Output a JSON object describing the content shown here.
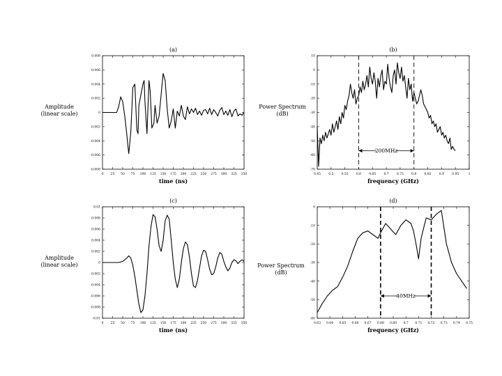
{
  "chart_data": [
    {
      "id": "a",
      "type": "line",
      "title": "(a)",
      "xlabel": "time (ns)",
      "ylabel": [
        "Amplitude",
        "(linear scale)"
      ],
      "xlim": [
        0,
        350
      ],
      "ylim": [
        -0.008,
        0.008
      ],
      "xticks": [
        0,
        25,
        50,
        75,
        100,
        125,
        150,
        175,
        200,
        225,
        250,
        275,
        300,
        325,
        350
      ],
      "xtick_labels": [
        "0",
        "25",
        "50",
        "75",
        "100",
        "125",
        "150",
        "175",
        "200",
        "225",
        "250",
        "275",
        "300",
        "325",
        "350"
      ],
      "yticks": [
        -0.008,
        -0.006,
        -0.004,
        -0.002,
        0,
        0.002,
        0.004,
        0.006,
        0.008
      ],
      "ytick_labels": [
        "-0.008",
        "-0.006",
        "-0.004",
        "-0.002",
        "0",
        "0.002",
        "0.004",
        "0.006",
        "0.008"
      ],
      "grid": false,
      "series": [
        {
          "x": [
            0,
            30,
            35,
            40,
            45,
            50,
            55,
            60,
            62,
            65,
            70,
            75,
            80,
            85,
            88,
            90,
            95,
            100,
            103,
            105,
            110,
            115,
            118,
            122,
            127,
            130,
            135,
            140,
            145,
            150,
            155,
            160,
            165,
            170,
            175,
            180,
            185,
            190,
            195,
            200,
            205,
            210,
            215,
            220,
            225,
            230,
            235,
            240,
            245,
            250,
            255,
            260,
            265,
            270,
            275,
            280,
            285,
            290,
            295,
            300,
            305,
            310,
            315,
            320,
            325,
            330,
            335,
            340,
            345,
            350
          ],
          "y": [
            0,
            0,
            0,
            0.0008,
            0.0022,
            0.0015,
            -0.0005,
            -0.003,
            -0.0043,
            -0.0058,
            -0.0028,
            0.0035,
            0.004,
            -0.0025,
            -0.003,
            0.001,
            0.0025,
            0.004,
            0.0045,
            0.0015,
            -0.003,
            0.0045,
            0.003,
            -0.0022,
            -0.0015,
            0.001,
            -0.0015,
            -0.0005,
            0.0025,
            0.0055,
            0.0045,
            0.0005,
            -0.0022,
            -0.0012,
            0.0005,
            -0.0022,
            0.0002,
            -0.0005,
            0.001,
            -0.0005,
            -0.001,
            0.0008,
            -0.0002,
            0.0005,
            0.0,
            0.0006,
            -0.0003,
            0.0002,
            -0.0004,
            0.0003,
            0.0004,
            -0.0002,
            0.0006,
            -0.0003,
            0.0004,
            0.0,
            -0.0005,
            0.0003,
            0.0007,
            -0.0003,
            0.0002,
            -0.0004,
            0.0004,
            -0.0006,
            0.0002,
            0.0005,
            -0.0005,
            -0.0002,
            -0.0004,
            0.0
          ]
        }
      ]
    },
    {
      "id": "b",
      "type": "line",
      "title": "(b)",
      "xlabel": "frequency (GHz)",
      "ylabel": [
        "Power Spectrum",
        "(dB)"
      ],
      "xlim": [
        0.45,
        1.0
      ],
      "ylim": [
        -70,
        10
      ],
      "xticks": [
        0.45,
        0.5,
        0.55,
        0.6,
        0.65,
        0.7,
        0.75,
        0.8,
        0.85,
        0.9,
        0.95,
        1.0
      ],
      "xtick_labels": [
        "0.45",
        "0.5",
        "0.55",
        "0.6",
        "0.65",
        "0.7",
        "0.75",
        "0.8",
        "0.85",
        "0.9",
        "0.95",
        "1"
      ],
      "yticks": [
        -70,
        -60,
        -50,
        -40,
        -30,
        -20,
        -10,
        0,
        10
      ],
      "ytick_labels": [
        "-70",
        "-60",
        "-50",
        "-40",
        "-30",
        "-20",
        "-10",
        "0",
        "10"
      ],
      "grid": false,
      "vlines": [
        0.6,
        0.8
      ],
      "annotation": {
        "text": "200MHz",
        "x1": 0.6,
        "x2": 0.8,
        "y": -57
      },
      "series": [
        {
          "x": [
            0.45,
            0.455,
            0.46,
            0.465,
            0.47,
            0.475,
            0.48,
            0.485,
            0.49,
            0.495,
            0.5,
            0.505,
            0.51,
            0.515,
            0.52,
            0.525,
            0.53,
            0.535,
            0.54,
            0.545,
            0.55,
            0.555,
            0.56,
            0.565,
            0.57,
            0.575,
            0.58,
            0.585,
            0.59,
            0.595,
            0.6,
            0.605,
            0.61,
            0.615,
            0.62,
            0.625,
            0.63,
            0.635,
            0.64,
            0.645,
            0.65,
            0.655,
            0.66,
            0.665,
            0.67,
            0.675,
            0.68,
            0.685,
            0.69,
            0.695,
            0.7,
            0.705,
            0.71,
            0.715,
            0.72,
            0.725,
            0.73,
            0.735,
            0.74,
            0.745,
            0.75,
            0.755,
            0.76,
            0.765,
            0.77,
            0.775,
            0.78,
            0.785,
            0.79,
            0.795,
            0.8,
            0.805,
            0.81,
            0.815,
            0.82,
            0.825,
            0.83,
            0.835,
            0.84,
            0.845,
            0.85,
            0.855,
            0.86,
            0.865,
            0.87,
            0.875,
            0.88,
            0.885,
            0.89,
            0.895,
            0.9,
            0.905,
            0.91,
            0.915,
            0.92,
            0.925,
            0.93,
            0.935,
            0.94,
            0.945,
            0.95
          ],
          "y": [
            -40,
            -68,
            -48,
            -52,
            -46,
            -50,
            -44,
            -48,
            -45,
            -42,
            -46,
            -38,
            -44,
            -40,
            -36,
            -42,
            -33,
            -38,
            -30,
            -34,
            -25,
            -28,
            -22,
            -18,
            -10,
            -16,
            -20,
            -14,
            -24,
            -20,
            -18,
            -12,
            -16,
            -8,
            -14,
            -10,
            -4,
            -12,
            2,
            -6,
            -10,
            -2,
            -8,
            -20,
            -6,
            -12,
            -4,
            0,
            -14,
            -8,
            -10,
            4,
            -6,
            -12,
            -16,
            -4,
            0,
            -10,
            5,
            -2,
            -6,
            2,
            -8,
            -4,
            -12,
            -20,
            -6,
            -14,
            -10,
            -22,
            -16,
            -20,
            -24,
            -22,
            -18,
            -14,
            -18,
            -24,
            -26,
            -28,
            -30,
            -34,
            -32,
            -38,
            -36,
            -40,
            -38,
            -44,
            -42,
            -40,
            -46,
            -44,
            -48,
            -46,
            -50,
            -52,
            -48,
            -56,
            -54,
            -56,
            -57
          ]
        }
      ]
    },
    {
      "id": "c",
      "type": "line",
      "title": "(c)",
      "xlabel": "time (ns)",
      "ylabel": [
        "Amplitude",
        "(linear scale)"
      ],
      "xlim": [
        0,
        350
      ],
      "ylim": [
        -0.01,
        0.01
      ],
      "xticks": [
        0,
        25,
        50,
        75,
        100,
        125,
        150,
        175,
        200,
        225,
        250,
        275,
        300,
        325,
        350
      ],
      "xtick_labels": [
        "0",
        "25",
        "50",
        "75",
        "100",
        "125",
        "150",
        "175",
        "200",
        "225",
        "250",
        "275",
        "300",
        "325",
        "350"
      ],
      "yticks": [
        -0.01,
        -0.008,
        -0.006,
        -0.004,
        -0.002,
        0,
        0.002,
        0.004,
        0.006,
        0.008,
        0.01
      ],
      "ytick_labels": [
        "-0.01",
        "-0.008",
        "-0.006",
        "-0.004",
        "-0.002",
        "0",
        "0.002",
        "0.004",
        "0.006",
        "0.008",
        "0.01"
      ],
      "grid": false,
      "series": [
        {
          "x": [
            0,
            10,
            20,
            30,
            40,
            50,
            60,
            65,
            70,
            75,
            80,
            85,
            90,
            95,
            100,
            105,
            110,
            115,
            120,
            125,
            130,
            135,
            140,
            145,
            150,
            155,
            160,
            165,
            170,
            175,
            180,
            185,
            190,
            195,
            200,
            205,
            210,
            215,
            220,
            225,
            230,
            235,
            240,
            245,
            250,
            255,
            260,
            265,
            270,
            275,
            280,
            285,
            290,
            295,
            300,
            305,
            310,
            315,
            320,
            325,
            330,
            335,
            340,
            345,
            350
          ],
          "y": [
            0,
            0,
            0,
            0,
            0,
            0.0002,
            0.0008,
            0.0012,
            0.0008,
            -0.0005,
            -0.0025,
            -0.005,
            -0.0075,
            -0.009,
            -0.0085,
            -0.006,
            -0.002,
            0.003,
            0.0065,
            0.0086,
            0.0082,
            0.006,
            0.003,
            0.002,
            0.004,
            0.0075,
            0.0085,
            0.0078,
            0.004,
            0.0,
            -0.003,
            -0.0045,
            -0.003,
            0.0,
            0.0025,
            0.0037,
            0.0032,
            0.001,
            -0.002,
            -0.0042,
            -0.0045,
            -0.0032,
            -0.001,
            0.0012,
            0.0022,
            0.002,
            0.0005,
            -0.0012,
            -0.0022,
            -0.002,
            -0.0008,
            0.0008,
            0.0018,
            0.0015,
            0.0002,
            -0.0008,
            -0.0015,
            -0.001,
            0.0,
            0.0005,
            0.0003,
            -0.0002,
            0.0002,
            0.0005,
            0.0002
          ]
        }
      ]
    },
    {
      "id": "d",
      "type": "line",
      "title": "(d)",
      "xlabel": "frequency (GHz)",
      "ylabel": [
        "Power Spectrum",
        "(dB)"
      ],
      "xlim": [
        0.63,
        0.75
      ],
      "ylim": [
        -60,
        0
      ],
      "xticks": [
        0.63,
        0.64,
        0.65,
        0.66,
        0.67,
        0.68,
        0.69,
        0.7,
        0.71,
        0.72,
        0.73,
        0.74,
        0.75
      ],
      "xtick_labels": [
        "0.63",
        "0.64",
        "0.65",
        "0.66",
        "0.67",
        "0.68",
        "0.69",
        "0.7",
        "0.71",
        "0.72",
        "0.73",
        "0.74",
        "0.75"
      ],
      "yticks": [
        -60,
        -50,
        -40,
        -30,
        -20,
        -10,
        0
      ],
      "ytick_labels": [
        "-60",
        "-50",
        "-40",
        "-30",
        "-20",
        "-10",
        "0"
      ],
      "grid": false,
      "vlines": [
        0.68,
        0.72
      ],
      "annotation": {
        "text": "40MHz",
        "x1": 0.68,
        "x2": 0.72,
        "y": -48
      },
      "series": [
        {
          "x": [
            0.63,
            0.634,
            0.638,
            0.642,
            0.646,
            0.65,
            0.654,
            0.658,
            0.662,
            0.666,
            0.67,
            0.674,
            0.678,
            0.68,
            0.684,
            0.688,
            0.692,
            0.696,
            0.7,
            0.704,
            0.706,
            0.708,
            0.71,
            0.712,
            0.716,
            0.72,
            0.724,
            0.728,
            0.732,
            0.736,
            0.74,
            0.744,
            0.748
          ],
          "y": [
            -57,
            -52,
            -48,
            -45,
            -43,
            -38,
            -32,
            -24,
            -17,
            -14,
            -13,
            -15,
            -17,
            -14,
            -9,
            -12,
            -15,
            -10,
            -7,
            -9,
            -13,
            -20,
            -28,
            -17,
            -6,
            -7,
            -4,
            -2,
            -20,
            -30,
            -36,
            -40,
            -44
          ]
        }
      ]
    }
  ]
}
